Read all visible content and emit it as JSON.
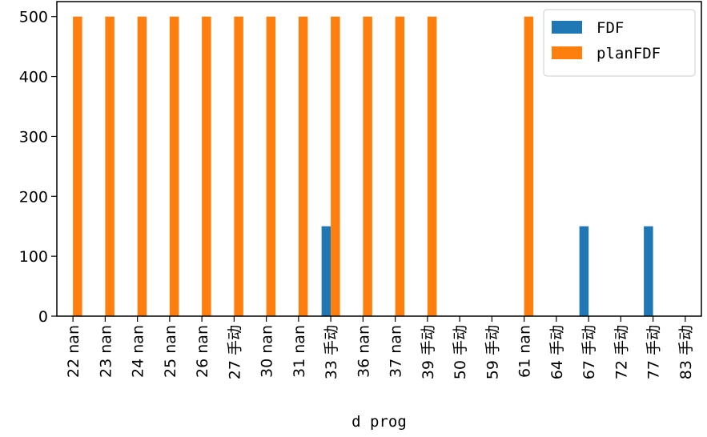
{
  "chart_data": {
    "type": "bar",
    "title": "",
    "xlabel": "d prog",
    "ylabel": "",
    "categories": [
      "22 nan",
      "23 nan",
      "24 nan",
      "25 nan",
      "26 nan",
      "27 手动",
      "30 nan",
      "31 nan",
      "33 手动",
      "36 nan",
      "37 nan",
      "39 手动",
      "50 手动",
      "59 手动",
      "61 nan",
      "64 手动",
      "67 手动",
      "72 手动",
      "77 手动",
      "83 手动"
    ],
    "series": [
      {
        "name": "FDF",
        "color": "#1f77b4",
        "values": [
          0,
          0,
          0,
          0,
          0,
          0,
          0,
          0,
          150,
          0,
          0,
          0,
          0,
          0,
          0,
          0,
          150,
          0,
          150,
          0
        ]
      },
      {
        "name": "planFDF",
        "color": "#ff7f0e",
        "values": [
          500,
          500,
          500,
          500,
          500,
          500,
          500,
          500,
          500,
          500,
          500,
          500,
          0,
          0,
          500,
          0,
          0,
          0,
          0,
          0
        ]
      }
    ],
    "ylim": [
      0,
      525
    ],
    "yticks": [
      0,
      100,
      200,
      300,
      400,
      500
    ],
    "grid": false,
    "legend_position": "top-right"
  }
}
